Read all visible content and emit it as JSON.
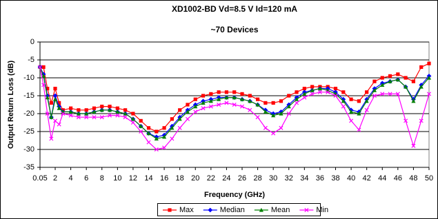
{
  "chart_data": {
    "type": "line",
    "title": "XD1002-BD Vd=8.5 V Id=120 mA",
    "subtitle": "~70 Devices",
    "x_label": "Frequency (GHz)",
    "y_label": "Output Return Loss (dB)",
    "x": [
      0.05,
      0.5,
      1,
      1.5,
      2,
      2.5,
      3,
      4,
      5,
      6,
      7,
      8,
      9,
      10,
      11,
      12,
      13,
      14,
      15,
      16,
      17,
      18,
      19,
      20,
      21,
      22,
      23,
      24,
      25,
      26,
      27,
      28,
      29,
      30,
      31,
      32,
      33,
      34,
      35,
      36,
      37,
      38,
      39,
      40,
      41,
      42,
      43,
      44,
      45,
      46,
      47,
      48,
      49,
      50
    ],
    "series": [
      {
        "name": "Max",
        "color": "#ff0000",
        "marker": "square",
        "values": [
          -7,
          -7,
          -13,
          -17,
          -13,
          -17,
          -19,
          -18.5,
          -19,
          -19,
          -18.5,
          -18,
          -18,
          -18.5,
          -19,
          -20,
          -22,
          -24,
          -25,
          -24,
          -21.5,
          -19,
          -17.5,
          -16,
          -15,
          -14.5,
          -14,
          -14,
          -14,
          -14.5,
          -15,
          -16,
          -17,
          -17,
          -16.5,
          -15,
          -14,
          -13,
          -12.5,
          -12.5,
          -12.5,
          -13,
          -14,
          -16,
          -16.5,
          -14,
          -11,
          -10,
          -9.5,
          -9,
          -10,
          -11,
          -7,
          -6
        ]
      },
      {
        "name": "Median",
        "color": "#0000ff",
        "marker": "diamond",
        "values": [
          -7,
          -9,
          -15,
          -21,
          -15,
          -18,
          -19.5,
          -19.5,
          -20,
          -20,
          -19.5,
          -19,
          -19,
          -19.5,
          -20,
          -21.5,
          -23.5,
          -25.5,
          -26.5,
          -26,
          -23.5,
          -21,
          -19,
          -17.5,
          -16.5,
          -16,
          -15.5,
          -15.5,
          -15.5,
          -16,
          -16.5,
          -17.5,
          -19,
          -20,
          -19.5,
          -17.5,
          -15.5,
          -14,
          -13.5,
          -13,
          -13,
          -14,
          -16,
          -19,
          -19.5,
          -16,
          -13,
          -11.5,
          -11,
          -10.5,
          -12.5,
          -16,
          -12,
          -9.5
        ]
      },
      {
        "name": "Mean",
        "color": "#008000",
        "marker": "triangle",
        "values": [
          -7,
          -9.5,
          -15.5,
          -21,
          -16,
          -18.5,
          -19.5,
          -19.5,
          -20,
          -20,
          -19.5,
          -19,
          -19,
          -19.5,
          -20,
          -21.5,
          -23.5,
          -25.5,
          -27,
          -26.5,
          -24,
          -21.5,
          -19.5,
          -18,
          -17,
          -16.5,
          -16,
          -15.5,
          -15.5,
          -16,
          -16.5,
          -17.5,
          -19.5,
          -20.5,
          -20,
          -18,
          -16,
          -14.5,
          -13.5,
          -13,
          -13.5,
          -14.5,
          -16.5,
          -19.5,
          -20,
          -16.5,
          -13.5,
          -12,
          -11,
          -10.5,
          -12.5,
          -16.5,
          -12.5,
          -10
        ]
      },
      {
        "name": "Min",
        "color": "#ff00ff",
        "marker": "x",
        "values": [
          -7,
          -12,
          -20,
          -27,
          -22,
          -23,
          -20,
          -20.5,
          -21,
          -21,
          -21,
          -21,
          -20.5,
          -20.5,
          -21,
          -22.5,
          -25,
          -28,
          -30,
          -29.5,
          -27,
          -24,
          -21.5,
          -19.5,
          -18.5,
          -18,
          -17.5,
          -17,
          -17.5,
          -18,
          -19,
          -21,
          -24,
          -25.5,
          -24,
          -20,
          -17,
          -15.5,
          -14.5,
          -14,
          -14,
          -15,
          -18,
          -22,
          -24.5,
          -19,
          -15,
          -14.5,
          -14.5,
          -14.5,
          -22,
          -29,
          -22,
          -14.5
        ]
      }
    ],
    "xlim": [
      0.05,
      50
    ],
    "xticks": [
      0.05,
      2,
      4,
      6,
      8,
      10,
      12,
      14,
      16,
      18,
      20,
      22,
      24,
      26,
      28,
      30,
      32,
      34,
      36,
      38,
      40,
      42,
      44,
      46,
      48,
      50
    ],
    "ylim": [
      -35,
      0
    ],
    "yticks": [
      0,
      -5,
      -10,
      -15,
      -20,
      -25,
      -30,
      -35
    ],
    "grid": true,
    "legend": "bottom"
  }
}
